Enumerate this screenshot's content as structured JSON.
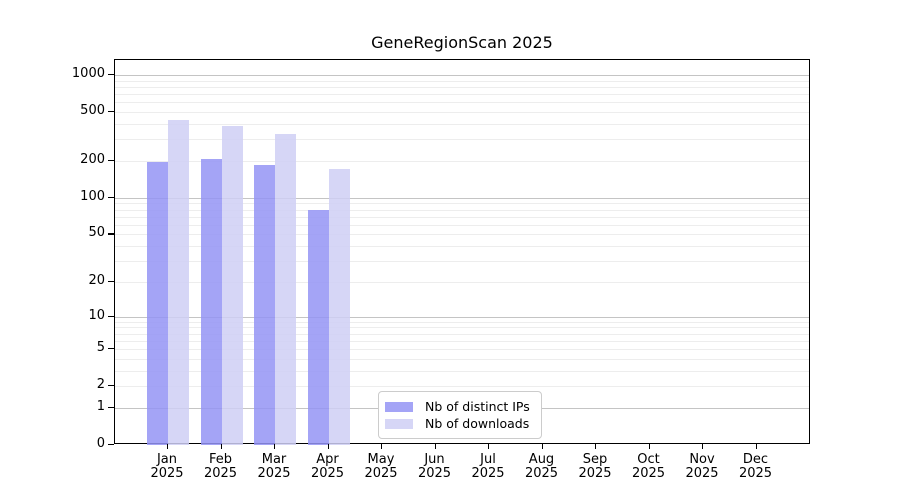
{
  "chart_data": {
    "type": "bar",
    "title": "GeneRegionScan 2025",
    "categories": [
      {
        "month": "Jan",
        "year": "2025"
      },
      {
        "month": "Feb",
        "year": "2025"
      },
      {
        "month": "Mar",
        "year": "2025"
      },
      {
        "month": "Apr",
        "year": "2025"
      },
      {
        "month": "May",
        "year": "2025"
      },
      {
        "month": "Jun",
        "year": "2025"
      },
      {
        "month": "Jul",
        "year": "2025"
      },
      {
        "month": "Aug",
        "year": "2025"
      },
      {
        "month": "Sep",
        "year": "2025"
      },
      {
        "month": "Oct",
        "year": "2025"
      },
      {
        "month": "Nov",
        "year": "2025"
      },
      {
        "month": "Dec",
        "year": "2025"
      }
    ],
    "series": [
      {
        "name": "Nb of distinct IPs",
        "color": "#9494f5",
        "values": [
          195,
          208,
          187,
          80,
          null,
          null,
          null,
          null,
          null,
          null,
          null,
          null
        ]
      },
      {
        "name": "Nb of downloads",
        "color": "#cfcff4",
        "values": [
          433,
          383,
          330,
          173,
          null,
          null,
          null,
          null,
          null,
          null,
          null,
          null
        ]
      }
    ],
    "y_axis": {
      "scale": "log1p",
      "range": [
        0,
        1000
      ],
      "ticks": [
        0,
        1,
        2,
        5,
        10,
        20,
        50,
        100,
        200,
        500,
        1000
      ],
      "major_gridlines": [
        1,
        10,
        100,
        1000
      ],
      "minor_gridlines": [
        2,
        3,
        4,
        5,
        6,
        7,
        8,
        9,
        20,
        30,
        40,
        50,
        60,
        70,
        80,
        90,
        200,
        300,
        400,
        500,
        600,
        700,
        800,
        900
      ]
    },
    "legend_position": "bottom-center"
  },
  "colors": {
    "distinct_ips_bar": "#9494f5",
    "downloads_bar": "#cfcff4",
    "major_gridline": "#c4c4c4",
    "minor_gridline": "#ededed",
    "axis": "#000000",
    "background": "#ffffff"
  }
}
